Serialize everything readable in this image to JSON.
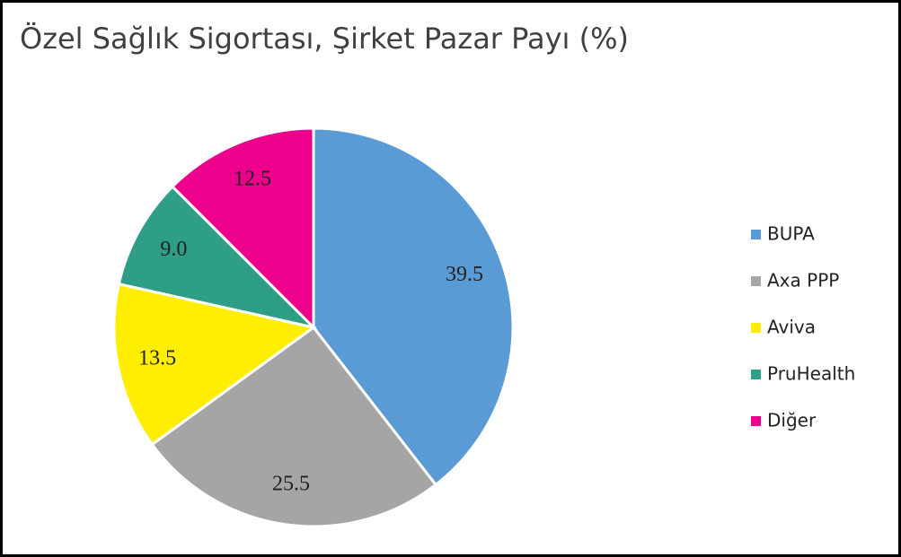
{
  "chart_data": {
    "type": "pie",
    "title": "Özel Sağlık Sigortası, Şirket Pazar Payı (%)",
    "categories": [
      "BUPA",
      "Axa PPP",
      "Aviva",
      "PruHealth",
      "Diğer"
    ],
    "values": [
      39.5,
      25.5,
      13.5,
      9,
      12.5
    ],
    "value_labels": [
      "39.5",
      "25.5",
      "13.5",
      "9.0",
      "12.5"
    ],
    "colors": [
      "#5b9bd5",
      "#a5a5a5",
      "#ffee00",
      "#2e9e86",
      "#ec008c"
    ],
    "legend": "right"
  }
}
